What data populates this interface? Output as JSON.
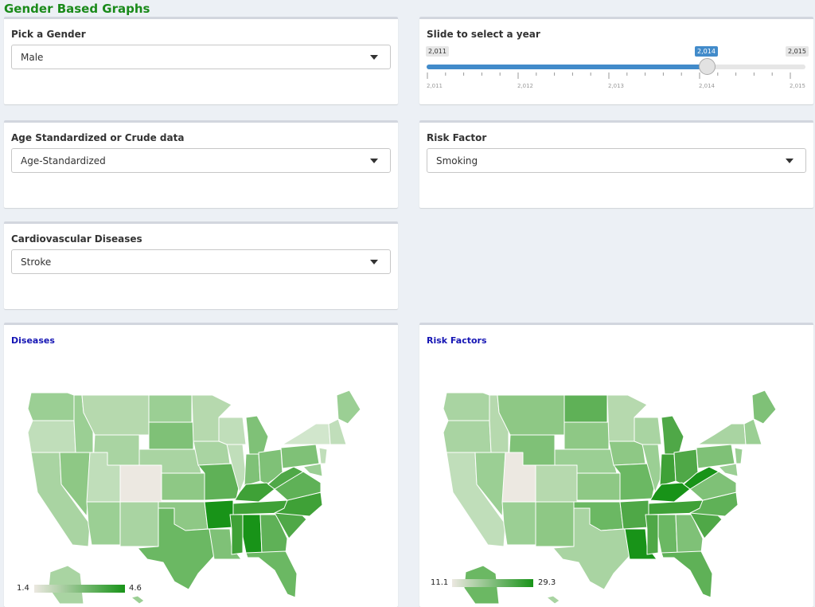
{
  "page": {
    "title": "Gender Based Graphs"
  },
  "gender": {
    "label": "Pick a Gender",
    "value": "Male"
  },
  "year": {
    "label": "Slide to select a year",
    "min": 2011,
    "max": 2015,
    "value": 2014,
    "min_label": "2,011",
    "max_label": "2,015",
    "value_label": "2,014",
    "ticks": [
      "2,011",
      "2,012",
      "2,013",
      "2,014",
      "2,015"
    ],
    "accent": "#428bca"
  },
  "data_type": {
    "label": "Age Standardized or Crude data",
    "value": "Age-Standardized"
  },
  "risk": {
    "label": "Risk Factor",
    "value": "Smoking"
  },
  "cvd": {
    "label": "Cardiovascular Diseases",
    "value": "Stroke"
  },
  "diseases_map": {
    "title": "Diseases",
    "legend_min": "1.4",
    "legend_max": "4.6",
    "color_low": "#ece8e1",
    "color_high": "#189318"
  },
  "risk_map": {
    "title": "Risk Factors",
    "legend_min": "11.1",
    "legend_max": "29.3",
    "color_low": "#ece8e1",
    "color_high": "#189318"
  }
}
